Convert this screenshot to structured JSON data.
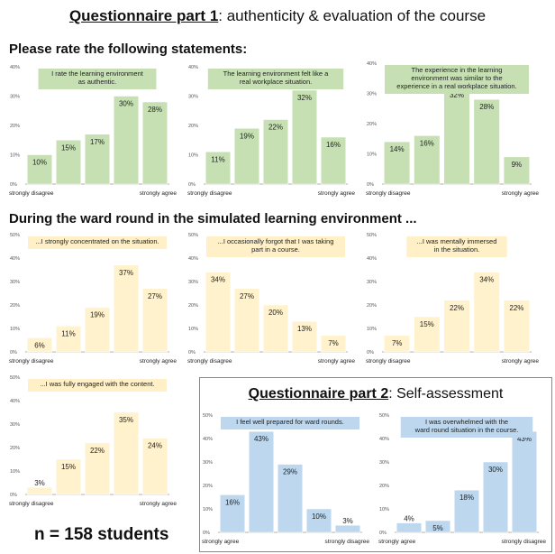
{
  "header": {
    "title_part": "Questionnaire part 1",
    "title_rest": ": authenticity & evaluation of the course",
    "section1": "Please rate the following statements:",
    "section2": "During the ward round in the simulated learning environment ...",
    "part2_title_part": "Questionnaire part 2",
    "part2_title_rest": ": Self-assessment",
    "n_label": "n = 158 students"
  },
  "colors": {
    "green": "#c6e0b4",
    "yellow": "#fff0c8",
    "blue": "#bdd7ee"
  },
  "chart_data": [
    {
      "type": "bar",
      "title": "I rate the learning environment as authentic.",
      "title_lines": [
        "I rate the learning environment",
        "as authentic."
      ],
      "color": "green",
      "categories": [
        "1",
        "2",
        "3",
        "4",
        "5"
      ],
      "values": [
        10,
        15,
        17,
        30,
        28
      ],
      "value_labels": [
        "10%",
        "15%",
        "17%",
        "30%",
        "28%"
      ],
      "ylim": [
        0,
        40
      ],
      "yticks": [
        "0%",
        "10%",
        "20%",
        "30%",
        "40%"
      ],
      "xlabel_left": "strongly disagree",
      "xlabel_right": "strongly agree"
    },
    {
      "type": "bar",
      "title": "The learning environment felt like a real workplace situation.",
      "title_lines": [
        "The learning environment felt like a",
        "real workplace situation."
      ],
      "color": "green",
      "categories": [
        "1",
        "2",
        "3",
        "4",
        "5"
      ],
      "values": [
        11,
        19,
        22,
        32,
        16
      ],
      "value_labels": [
        "11%",
        "19%",
        "22%",
        "32%",
        "16%"
      ],
      "ylim": [
        0,
        40
      ],
      "yticks": [
        "0%",
        "10%",
        "20%",
        "30%",
        "40%"
      ],
      "xlabel_left": "strongly disagree",
      "xlabel_right": "strongly agree"
    },
    {
      "type": "bar",
      "title": "The experience in the learning environment was similar to the experience in a real workplace situation.",
      "title_lines": [
        "The experience in the learning",
        "environment was similar to the",
        "experience in a real workplace situation."
      ],
      "color": "green",
      "categories": [
        "1",
        "2",
        "3",
        "4",
        "5"
      ],
      "values": [
        14,
        16,
        32,
        28,
        9
      ],
      "value_labels": [
        "14%",
        "16%",
        "32%",
        "28%",
        "9%"
      ],
      "ylim": [
        0,
        40
      ],
      "yticks": [
        "0%",
        "10%",
        "20%",
        "30%",
        "40%"
      ],
      "xlabel_left": "strongly disagree",
      "xlabel_right": "strongly agree"
    },
    {
      "type": "bar",
      "title": "...I strongly concentrated on the situation.",
      "title_lines": [
        "...I strongly concentrated on the situation."
      ],
      "color": "yellow",
      "categories": [
        "1",
        "2",
        "3",
        "4",
        "5"
      ],
      "values": [
        6,
        11,
        19,
        37,
        27
      ],
      "value_labels": [
        "6%",
        "11%",
        "19%",
        "37%",
        "27%"
      ],
      "ylim": [
        0,
        50
      ],
      "yticks": [
        "0%",
        "10%",
        "20%",
        "30%",
        "40%",
        "50%"
      ],
      "xlabel_left": "strongly disagree",
      "xlabel_right": "strongly agree"
    },
    {
      "type": "bar",
      "title": "...I occasionally forgot that I was taking part in a course.",
      "title_lines": [
        "...I occasionally forgot that I was taking",
        "part in a course."
      ],
      "color": "yellow",
      "categories": [
        "1",
        "2",
        "3",
        "4",
        "5"
      ],
      "values": [
        34,
        27,
        20,
        13,
        7
      ],
      "value_labels": [
        "34%",
        "27%",
        "20%",
        "13%",
        "7%"
      ],
      "ylim": [
        0,
        50
      ],
      "yticks": [
        "0%",
        "10%",
        "20%",
        "30%",
        "40%",
        "50%"
      ],
      "xlabel_left": "strongly disagree",
      "xlabel_right": "strongly agree"
    },
    {
      "type": "bar",
      "title": "...I was mentally immersed in the situation.",
      "title_lines": [
        "...I was mentally immersed",
        "in the situation."
      ],
      "color": "yellow",
      "categories": [
        "1",
        "2",
        "3",
        "4",
        "5"
      ],
      "values": [
        7,
        15,
        22,
        34,
        22
      ],
      "value_labels": [
        "7%",
        "15%",
        "22%",
        "34%",
        "22%"
      ],
      "ylim": [
        0,
        50
      ],
      "yticks": [
        "0%",
        "10%",
        "20%",
        "30%",
        "40%",
        "50%"
      ],
      "xlabel_left": "strongly disagree",
      "xlabel_right": "strongly agree"
    },
    {
      "type": "bar",
      "title": "...I was fully engaged with the content.",
      "title_lines": [
        "...I was fully engaged with the content."
      ],
      "color": "yellow",
      "categories": [
        "1",
        "2",
        "3",
        "4",
        "5"
      ],
      "values": [
        3,
        15,
        22,
        35,
        24
      ],
      "value_labels": [
        "3%",
        "15%",
        "22%",
        "35%",
        "24%"
      ],
      "ylim": [
        0,
        50
      ],
      "yticks": [
        "0%",
        "10%",
        "20%",
        "30%",
        "40%",
        "50%"
      ],
      "xlabel_left": "strongly disagree",
      "xlabel_right": "strongly agree"
    },
    {
      "type": "bar",
      "title": "I feel well prepared for ward rounds.",
      "title_lines": [
        "I feel well prepared for ward rounds."
      ],
      "color": "blue",
      "categories": [
        "1",
        "2",
        "3",
        "4",
        "5"
      ],
      "values": [
        16,
        43,
        29,
        10,
        3
      ],
      "value_labels": [
        "16%",
        "43%",
        "29%",
        "10%",
        "3%"
      ],
      "ylim": [
        0,
        50
      ],
      "yticks": [
        "0%",
        "10%",
        "20%",
        "30%",
        "40%",
        "50%"
      ],
      "xlabel_left": "strongly agree",
      "xlabel_right": "strongly disagree"
    },
    {
      "type": "bar",
      "title": "I was overwhelmed with the ward round situation in the course.",
      "title_lines": [
        "I was overwhelmed with the",
        "ward round situation in the course."
      ],
      "color": "blue",
      "categories": [
        "1",
        "2",
        "3",
        "4",
        "5"
      ],
      "values": [
        4,
        5,
        18,
        30,
        43
      ],
      "value_labels": [
        "4%",
        "5%",
        "18%",
        "30%",
        "43%"
      ],
      "ylim": [
        0,
        50
      ],
      "yticks": [
        "0%",
        "10%",
        "20%",
        "30%",
        "40%",
        "50%"
      ],
      "xlabel_left": "strongly agree",
      "xlabel_right": "strongly disagree"
    }
  ]
}
